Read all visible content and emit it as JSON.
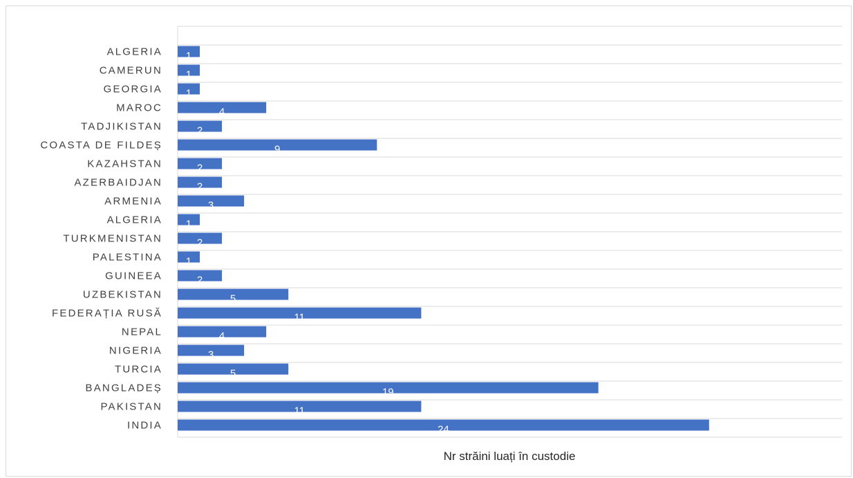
{
  "chart_data": {
    "type": "bar",
    "orientation": "horizontal",
    "categories": [
      "ALGERIA",
      "CAMERUN",
      "GEORGIA",
      "MAROC",
      "TADJIKISTAN",
      "COASTA DE FILDEȘ",
      "KAZAHSTAN",
      "AZERBAIDJAN",
      "ARMENIA",
      "ALGERIA",
      "TURKMENISTAN",
      "PALESTINA",
      "GUINEEA",
      "UZBEKISTAN",
      "FEDERAȚIA RUSĂ",
      "NEPAL",
      "NIGERIA",
      "TURCIA",
      "BANGLADEȘ",
      "PAKISTAN",
      "INDIA"
    ],
    "series": [
      {
        "name": "Nr străini luați în custodie",
        "values": [
          1,
          1,
          1,
          4,
          2,
          9,
          2,
          2,
          3,
          1,
          2,
          1,
          2,
          5,
          11,
          4,
          3,
          5,
          19,
          11,
          24
        ],
        "color": "#4472c4"
      }
    ],
    "xlim": [
      0,
      30
    ],
    "grid": "horizontal",
    "legend": "bottom",
    "data_labels": true
  }
}
